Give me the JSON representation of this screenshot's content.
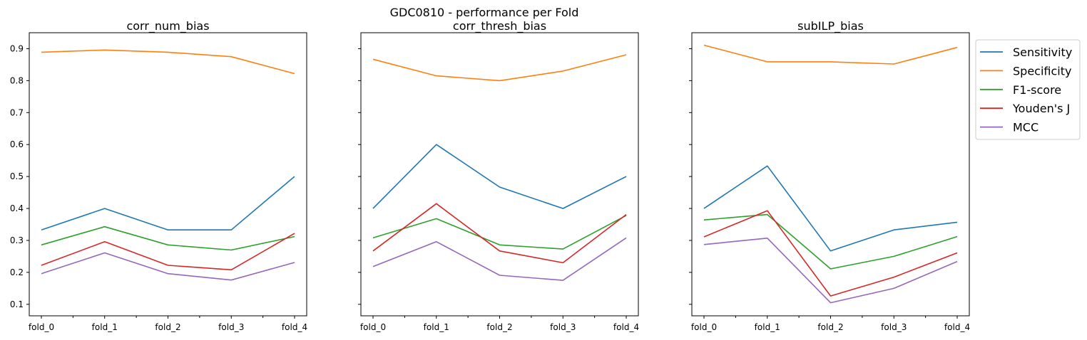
{
  "suptitle": "GDC0810 - performance per Fold",
  "colors": {
    "Sensitivity": "#1f77b4",
    "Specificity": "#ff7f0e",
    "F1-score": "#2ca02c",
    "Youden's J": "#d62728",
    "MCC": "#9467bd"
  },
  "legend": {
    "location": "right of last panel, top",
    "entries": [
      "Sensitivity",
      "Specificity",
      "F1-score",
      "Youden's J",
      "MCC"
    ]
  },
  "chart_data": [
    {
      "type": "line",
      "title": "corr_num_bias",
      "categories": [
        "fold_0",
        "fold_1",
        "fold_2",
        "fold_3",
        "fold_4"
      ],
      "ylim": [
        0.064,
        0.95
      ],
      "yticks": [
        0.1,
        0.2,
        0.3,
        0.4,
        0.5,
        0.6,
        0.7,
        0.8,
        0.9
      ],
      "show_ytick_labels": true,
      "grid": false,
      "series": [
        {
          "name": "Sensitivity",
          "values": [
            0.333,
            0.4,
            0.333,
            0.333,
            0.5
          ]
        },
        {
          "name": "Specificity",
          "values": [
            0.889,
            0.896,
            0.889,
            0.875,
            0.822
          ]
        },
        {
          "name": "F1-score",
          "values": [
            0.286,
            0.343,
            0.286,
            0.27,
            0.312
          ]
        },
        {
          "name": "Youden's J",
          "values": [
            0.222,
            0.296,
            0.222,
            0.208,
            0.322
          ]
        },
        {
          "name": "MCC",
          "values": [
            0.196,
            0.261,
            0.196,
            0.176,
            0.231
          ]
        }
      ]
    },
    {
      "type": "line",
      "title": "corr_thresh_bias",
      "categories": [
        "fold_0",
        "fold_1",
        "fold_2",
        "fold_3",
        "fold_4"
      ],
      "ylim": [
        0.064,
        0.95
      ],
      "yticks": [
        0.1,
        0.2,
        0.3,
        0.4,
        0.5,
        0.6,
        0.7,
        0.8,
        0.9
      ],
      "show_ytick_labels": false,
      "grid": false,
      "series": [
        {
          "name": "Sensitivity",
          "values": [
            0.4,
            0.6,
            0.467,
            0.4,
            0.5
          ]
        },
        {
          "name": "Specificity",
          "values": [
            0.867,
            0.815,
            0.8,
            0.83,
            0.881
          ]
        },
        {
          "name": "F1-score",
          "values": [
            0.308,
            0.368,
            0.286,
            0.273,
            0.378
          ]
        },
        {
          "name": "Youden's J",
          "values": [
            0.267,
            0.415,
            0.267,
            0.23,
            0.381
          ]
        },
        {
          "name": "MCC",
          "values": [
            0.218,
            0.296,
            0.191,
            0.175,
            0.308
          ]
        }
      ]
    },
    {
      "type": "line",
      "title": "subILP_bias",
      "categories": [
        "fold_0",
        "fold_1",
        "fold_2",
        "fold_3",
        "fold_4"
      ],
      "ylim": [
        0.064,
        0.95
      ],
      "yticks": [
        0.1,
        0.2,
        0.3,
        0.4,
        0.5,
        0.6,
        0.7,
        0.8,
        0.9
      ],
      "show_ytick_labels": false,
      "grid": false,
      "series": [
        {
          "name": "Sensitivity",
          "values": [
            0.4,
            0.533,
            0.267,
            0.333,
            0.357
          ]
        },
        {
          "name": "Specificity",
          "values": [
            0.911,
            0.859,
            0.859,
            0.852,
            0.904
          ]
        },
        {
          "name": "F1-score",
          "values": [
            0.364,
            0.381,
            0.211,
            0.25,
            0.312
          ]
        },
        {
          "name": "Youden's J",
          "values": [
            0.311,
            0.393,
            0.126,
            0.185,
            0.261
          ]
        },
        {
          "name": "MCC",
          "values": [
            0.287,
            0.307,
            0.105,
            0.15,
            0.234
          ]
        }
      ]
    }
  ]
}
